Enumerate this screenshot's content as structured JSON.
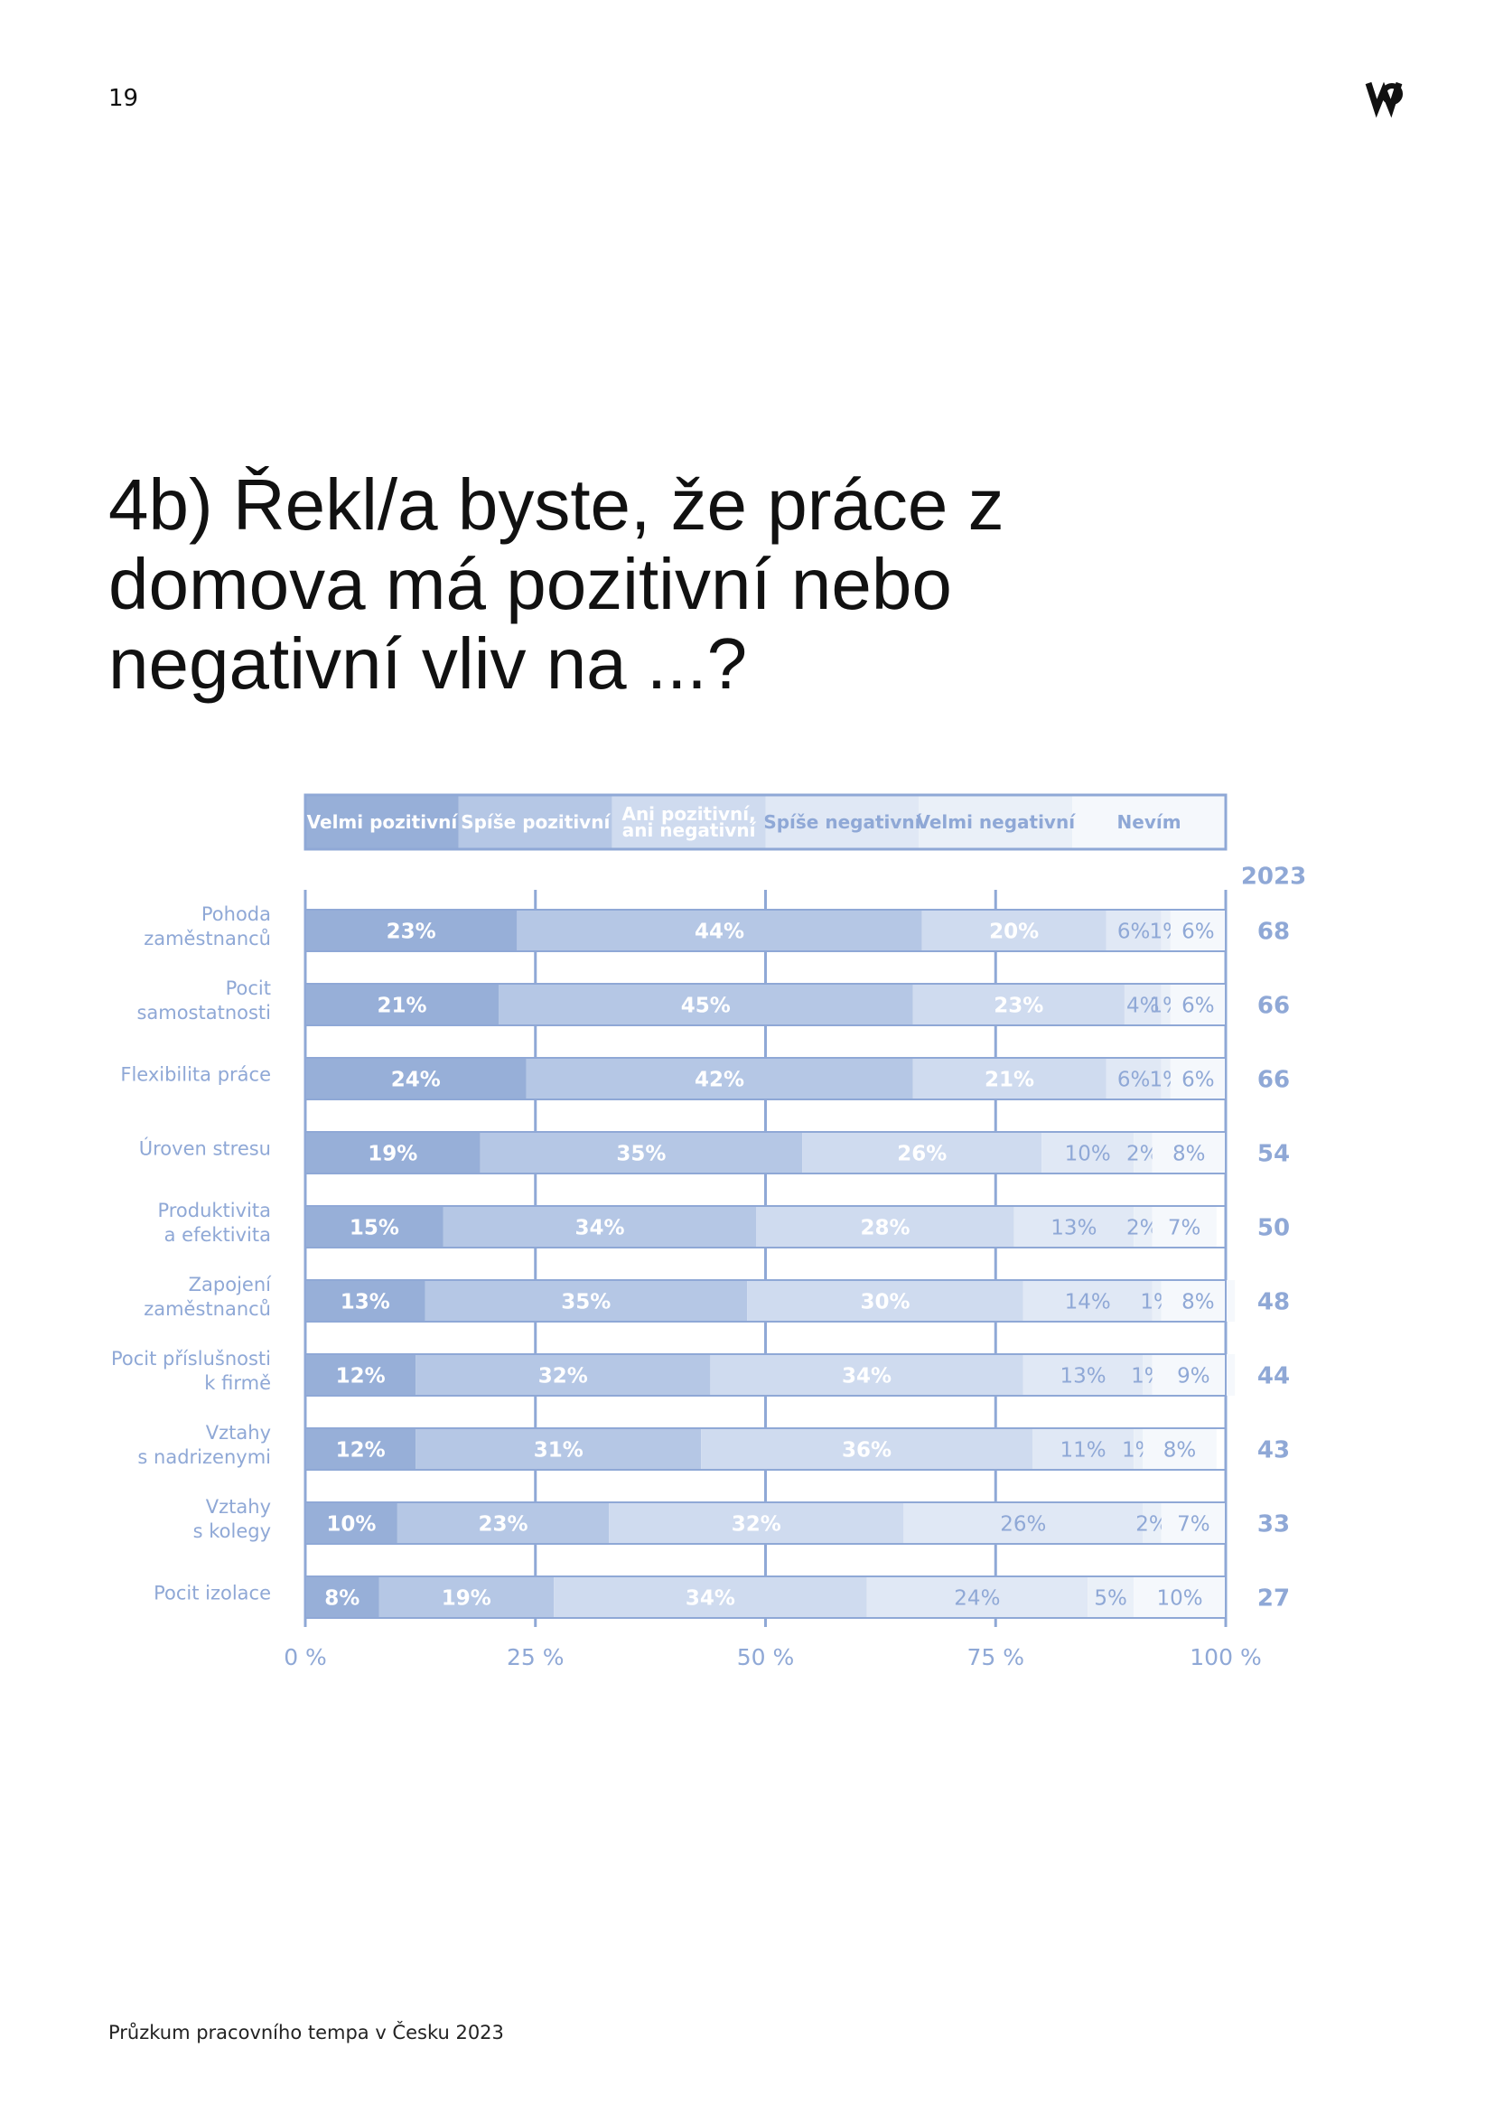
{
  "page_number": "19",
  "footer": "Průzkum pracovního tempa v Česku 2023",
  "chart_data": {
    "type": "stacked-bar",
    "title": "4b) Řekl/a byste, že práce z domova má pozitivní nebo negativní vliv na ...?",
    "categories": [
      "Pohoda\nzaměstnanců",
      "Pocit\nsamostatnosti",
      "Flexibilita práce",
      "Úroven stresu",
      "Produktivita\na efektivita",
      "Zapojení\nzaměstnanců",
      "Pocit příslušnosti\nk firmě",
      "Vztahy\ns nadrizenymi",
      "Vztahy\ns kolegy",
      "Pocit izolace"
    ],
    "series": [
      {
        "name": "Velmi pozitivní",
        "color": "#97afd8",
        "values": [
          23,
          21,
          24,
          19,
          15,
          13,
          12,
          12,
          10,
          8
        ],
        "value_labels": [
          "23%",
          "21%",
          "24%",
          "19%",
          "15%",
          "13%",
          "12%",
          "12%",
          "10%",
          "8%"
        ]
      },
      {
        "name": "Spíše pozitivní",
        "color": "#b5c7e5",
        "values": [
          44,
          45,
          42,
          35,
          34,
          35,
          32,
          31,
          23,
          19
        ],
        "value_labels": [
          "44%",
          "45%",
          "42%",
          "35%",
          "34%",
          "35%",
          "32%",
          "31%",
          "23%",
          "19%"
        ]
      },
      {
        "name": "Ani pozitivní,\nani negativní",
        "color": "#cfdbef",
        "values": [
          20,
          23,
          21,
          26,
          28,
          30,
          34,
          36,
          32,
          34
        ],
        "value_labels": [
          "20%",
          "23%",
          "21%",
          "26%",
          "28%",
          "30%",
          "34%",
          "36%",
          "32%",
          "34%"
        ]
      },
      {
        "name": "Spíše negativní",
        "color": "#e0e8f5",
        "values": [
          6,
          4,
          6,
          10,
          13,
          14,
          13,
          11,
          26,
          24
        ],
        "value_labels": [
          "6%",
          "4%",
          "6%",
          "10%",
          "13%",
          "14%",
          "13%",
          "11%",
          "26%",
          "24%"
        ]
      },
      {
        "name": "Velmi negativní",
        "color": "#eaf0f8",
        "values": [
          1,
          1,
          1,
          2,
          2,
          1,
          1,
          1,
          2,
          5
        ],
        "value_labels": [
          "1%",
          "1%",
          "1%",
          "2%",
          "2%",
          "1%",
          "1%",
          "1%",
          "2%",
          "5%"
        ]
      },
      {
        "name": "Nevím",
        "color": "#f5f8fc",
        "values": [
          6,
          6,
          6,
          8,
          7,
          8,
          9,
          8,
          7,
          10
        ],
        "value_labels": [
          "6%",
          "6%",
          "6%",
          "8%",
          "7%",
          "8%",
          "9%",
          "8%",
          "7%",
          "10%"
        ]
      }
    ],
    "xlim": [
      0,
      100
    ],
    "xticks": [
      {
        "value": 0,
        "label": "0 %"
      },
      {
        "value": 25,
        "label": "25 %"
      },
      {
        "value": 50,
        "label": "50 %"
      },
      {
        "value": 75,
        "label": "75 %"
      },
      {
        "value": 100,
        "label": "100 %"
      }
    ],
    "grid": true,
    "net_header": "2023",
    "net_values": [
      68,
      66,
      66,
      54,
      50,
      48,
      44,
      43,
      33,
      27
    ]
  }
}
